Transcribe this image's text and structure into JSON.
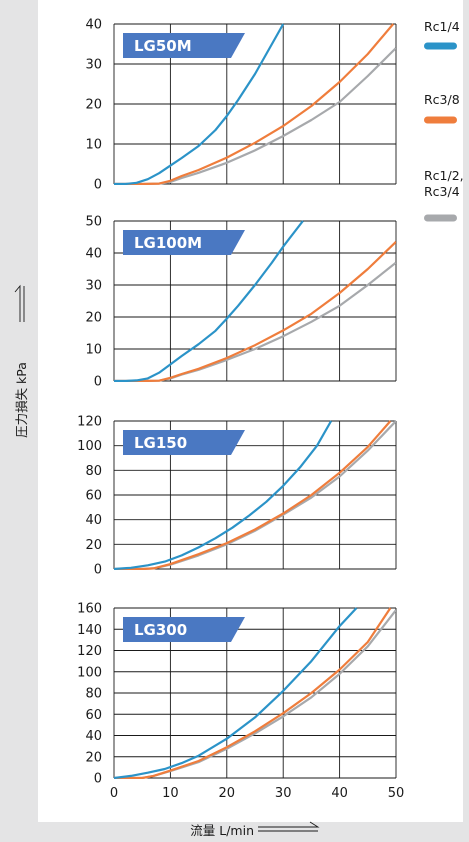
{
  "chart_data": {
    "type": "line",
    "xlabel": "流量 L/min",
    "ylabel": "圧力損失 kPa",
    "xlim": [
      0,
      50
    ],
    "x_ticks": [
      0,
      10,
      20,
      30,
      40,
      50
    ],
    "grid": true,
    "legend_placement": "right",
    "legend": [
      {
        "label": "Rc1/4",
        "color": "#2b93c8"
      },
      {
        "label": "Rc3/8",
        "color": "#ef7d3c"
      },
      {
        "label": "Rc1/2,\nRc3/4",
        "color": "#a7a9ac"
      }
    ],
    "panels": [
      {
        "title": "LG50M",
        "ylim": [
          0,
          40
        ],
        "y_ticks": [
          0,
          10,
          20,
          30,
          40
        ],
        "series": [
          {
            "name": "Rc1/4",
            "color": "#2b93c8",
            "x": [
              0,
              2,
              4,
              6,
              8,
              10,
              12,
              15,
              18,
              20,
              22,
              25,
              27,
              29,
              30
            ],
            "y": [
              0,
              0,
              0.3,
              1.2,
              2.7,
              4.6,
              6.5,
              9.5,
              13.5,
              17,
              21,
              27.5,
              32.5,
              37.5,
              40
            ]
          },
          {
            "name": "Rc3/8",
            "color": "#ef7d3c",
            "x": [
              0,
              5,
              8,
              10,
              12,
              15,
              20,
              25,
              30,
              35,
              40,
              45,
              49.5
            ],
            "y": [
              0,
              0,
              0.1,
              0.8,
              2,
              3.5,
              6.6,
              10.3,
              14.5,
              19.5,
              25.5,
              32.5,
              40
            ]
          },
          {
            "name": "Rc1/2,\nRc3/4",
            "color": "#a7a9ac",
            "x": [
              0,
              5,
              8,
              10,
              12,
              15,
              20,
              25,
              30,
              35,
              40,
              45,
              50
            ],
            "y": [
              0,
              0,
              0.1,
              0.5,
              1.5,
              2.8,
              5.3,
              8.4,
              12,
              16,
              20.5,
              27,
              34
            ]
          }
        ]
      },
      {
        "title": "LG100M",
        "ylim": [
          0,
          50
        ],
        "y_ticks": [
          0,
          10,
          20,
          30,
          40,
          50
        ],
        "series": [
          {
            "name": "Rc1/4",
            "color": "#2b93c8",
            "x": [
              0,
              2,
              4,
              6,
              8,
              10,
              12,
              15,
              18,
              20,
              22,
              25,
              28,
              30,
              33.5
            ],
            "y": [
              0,
              0,
              0.2,
              0.8,
              2.6,
              5.2,
              7.8,
              11.5,
              15.7,
              19.5,
              23.5,
              30,
              37,
              42,
              50
            ]
          },
          {
            "name": "Rc3/8",
            "color": "#ef7d3c",
            "x": [
              0,
              5,
              8,
              10,
              12,
              15,
              20,
              25,
              30,
              35,
              40,
              45,
              50
            ],
            "y": [
              0,
              0,
              0.1,
              1,
              2.2,
              3.8,
              7.2,
              11.2,
              15.8,
              21,
              27.5,
              35,
              43.5
            ]
          },
          {
            "name": "Rc1/2,\nRc3/4",
            "color": "#a7a9ac",
            "x": [
              0,
              5,
              8,
              10,
              12,
              15,
              20,
              25,
              30,
              35,
              40,
              45,
              50
            ],
            "y": [
              0,
              0,
              0.1,
              0.8,
              2,
              3.5,
              6.6,
              10,
              14,
              18.5,
              23.5,
              30,
              37
            ]
          }
        ]
      },
      {
        "title": "LG150",
        "ylim": [
          0,
          120
        ],
        "y_ticks": [
          0,
          20,
          40,
          60,
          80,
          100,
          120
        ],
        "series": [
          {
            "name": "Rc1/4",
            "color": "#2b93c8",
            "x": [
              0,
              3,
              6,
              9,
              12,
              15,
              18,
              21,
              24,
              27,
              30,
              33,
              36,
              38.5
            ],
            "y": [
              0,
              1,
              3,
              6,
              11,
              17.5,
              25,
              33.5,
              43.5,
              54.5,
              67.5,
              82.5,
              100,
              120
            ]
          },
          {
            "name": "Rc3/8",
            "color": "#ef7d3c",
            "x": [
              0,
              5,
              7,
              10,
              15,
              20,
              25,
              30,
              35,
              40,
              45,
              49
            ],
            "y": [
              0,
              0,
              0.5,
              4,
              12,
              21,
              32,
              45,
              60,
              78,
              99,
              120
            ]
          },
          {
            "name": "Rc1/2,\nRc3/4",
            "color": "#a7a9ac",
            "x": [
              0,
              5,
              7,
              10,
              15,
              20,
              25,
              30,
              35,
              40,
              45,
              50
            ],
            "y": [
              0,
              0,
              0.5,
              3.5,
              11,
              20,
              31,
              44,
              58,
              75,
              96,
              120
            ]
          }
        ]
      },
      {
        "title": "LG300",
        "ylim": [
          0,
          160
        ],
        "y_ticks": [
          0,
          20,
          40,
          60,
          80,
          100,
          120,
          140,
          160
        ],
        "series": [
          {
            "name": "Rc1/4",
            "color": "#2b93c8",
            "x": [
              0,
              3,
              6,
              9,
              12,
              15,
              20,
              25,
              30,
              35,
              40,
              43
            ],
            "y": [
              0,
              2,
              5,
              8.5,
              14,
              21,
              37,
              57,
              82,
              110,
              143,
              160
            ]
          },
          {
            "name": "Rc3/8",
            "color": "#ef7d3c",
            "x": [
              0,
              5,
              7,
              10,
              15,
              20,
              25,
              30,
              35,
              40,
              45,
              49
            ],
            "y": [
              0,
              0,
              2,
              7,
              16,
              29,
              44,
              61,
              80,
              102,
              128,
              160
            ]
          },
          {
            "name": "Rc1/2,\nRc3/4",
            "color": "#a7a9ac",
            "x": [
              0,
              5,
              7,
              10,
              15,
              20,
              25,
              30,
              35,
              40,
              45,
              50
            ],
            "y": [
              0,
              0,
              2,
              6.5,
              15,
              27.5,
              42,
              58,
              76,
              98,
              124,
              158
            ]
          }
        ]
      }
    ]
  }
}
